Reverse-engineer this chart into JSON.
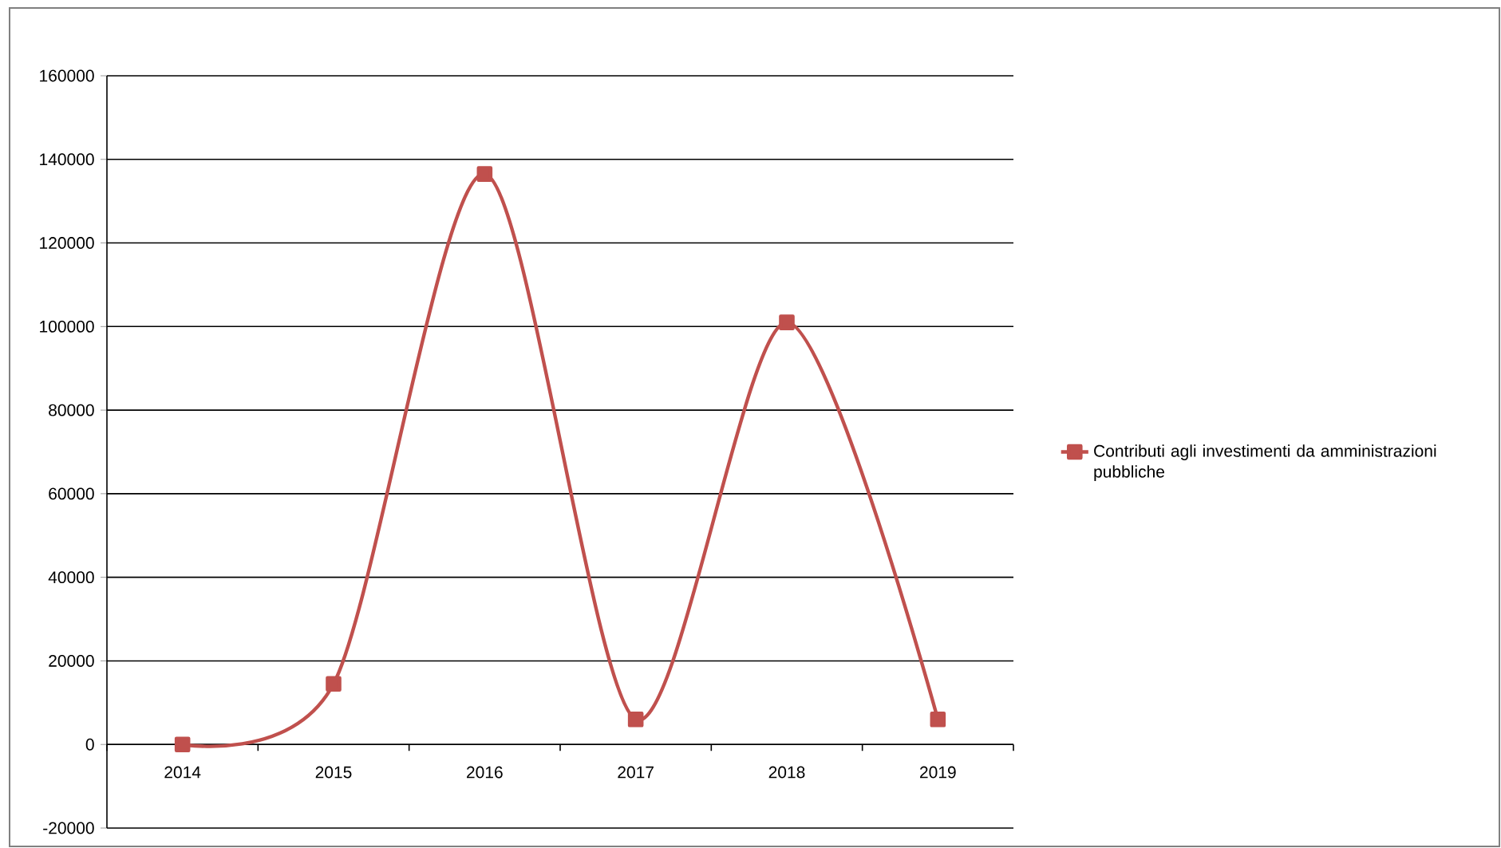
{
  "chart_data": {
    "type": "line",
    "categories": [
      "2014",
      "2015",
      "2016",
      "2017",
      "2018",
      "2019"
    ],
    "series": [
      {
        "name": "Contributi agli investimenti da amministrazioni pubbliche",
        "color": "#c0504d",
        "values": [
          0,
          14500,
          136500,
          6000,
          101000,
          6000
        ]
      }
    ],
    "ylim": [
      -20000,
      160000
    ],
    "yticks": [
      -20000,
      0,
      20000,
      40000,
      60000,
      80000,
      100000,
      120000,
      140000,
      160000
    ],
    "grid": "y",
    "legend": "right",
    "marker": "square",
    "line_style": "solid"
  }
}
